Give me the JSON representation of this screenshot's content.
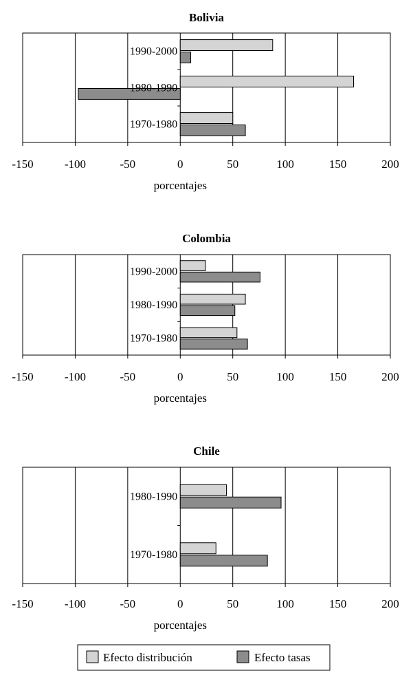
{
  "chart_data": [
    {
      "type": "bar",
      "orientation": "horizontal",
      "title": "Bolivia",
      "categories": [
        "1990-2000",
        "1980-1990",
        "1970-1980"
      ],
      "series": [
        {
          "name": "Efecto distribución",
          "values": [
            88,
            165,
            50
          ]
        },
        {
          "name": "Efecto tasas",
          "values": [
            10,
            -97,
            62
          ]
        }
      ],
      "xlabel": "porcentajes",
      "xlim": [
        -150,
        200
      ],
      "xticks": [
        "-150",
        "-100",
        "-50",
        "0",
        "50",
        "100",
        "150",
        "200"
      ],
      "grid": true
    },
    {
      "type": "bar",
      "orientation": "horizontal",
      "title": "Colombia",
      "categories": [
        "1990-2000",
        "1980-1990",
        "1970-1980"
      ],
      "series": [
        {
          "name": "Efecto distribución",
          "values": [
            24,
            62,
            54
          ]
        },
        {
          "name": "Efecto tasas",
          "values": [
            76,
            52,
            64
          ]
        }
      ],
      "xlabel": "porcentajes",
      "xlim": [
        -150,
        200
      ],
      "xticks": [
        "-150",
        "-100",
        "-50",
        "0",
        "50",
        "100",
        "150",
        "200"
      ],
      "grid": true
    },
    {
      "type": "bar",
      "orientation": "horizontal",
      "title": "Chile",
      "categories": [
        "1980-1990",
        "1970-1980"
      ],
      "series": [
        {
          "name": "Efecto distribución",
          "values": [
            44,
            34
          ]
        },
        {
          "name": "Efecto tasas",
          "values": [
            96,
            83
          ]
        }
      ],
      "xlabel": "porcentajes",
      "xlim": [
        -150,
        200
      ],
      "xticks": [
        "-150",
        "-100",
        "-50",
        "0",
        "50",
        "100",
        "150",
        "200"
      ],
      "grid": true
    }
  ],
  "legend": {
    "placement": "bottom",
    "items": [
      {
        "label": "Efecto distribución",
        "color": "#d4d4d4"
      },
      {
        "label": "Efecto tasas",
        "color": "#8c8c8c"
      }
    ]
  },
  "colors": {
    "series1": "#d4d4d4",
    "series2": "#8c8c8c",
    "stroke": "#000000"
  }
}
